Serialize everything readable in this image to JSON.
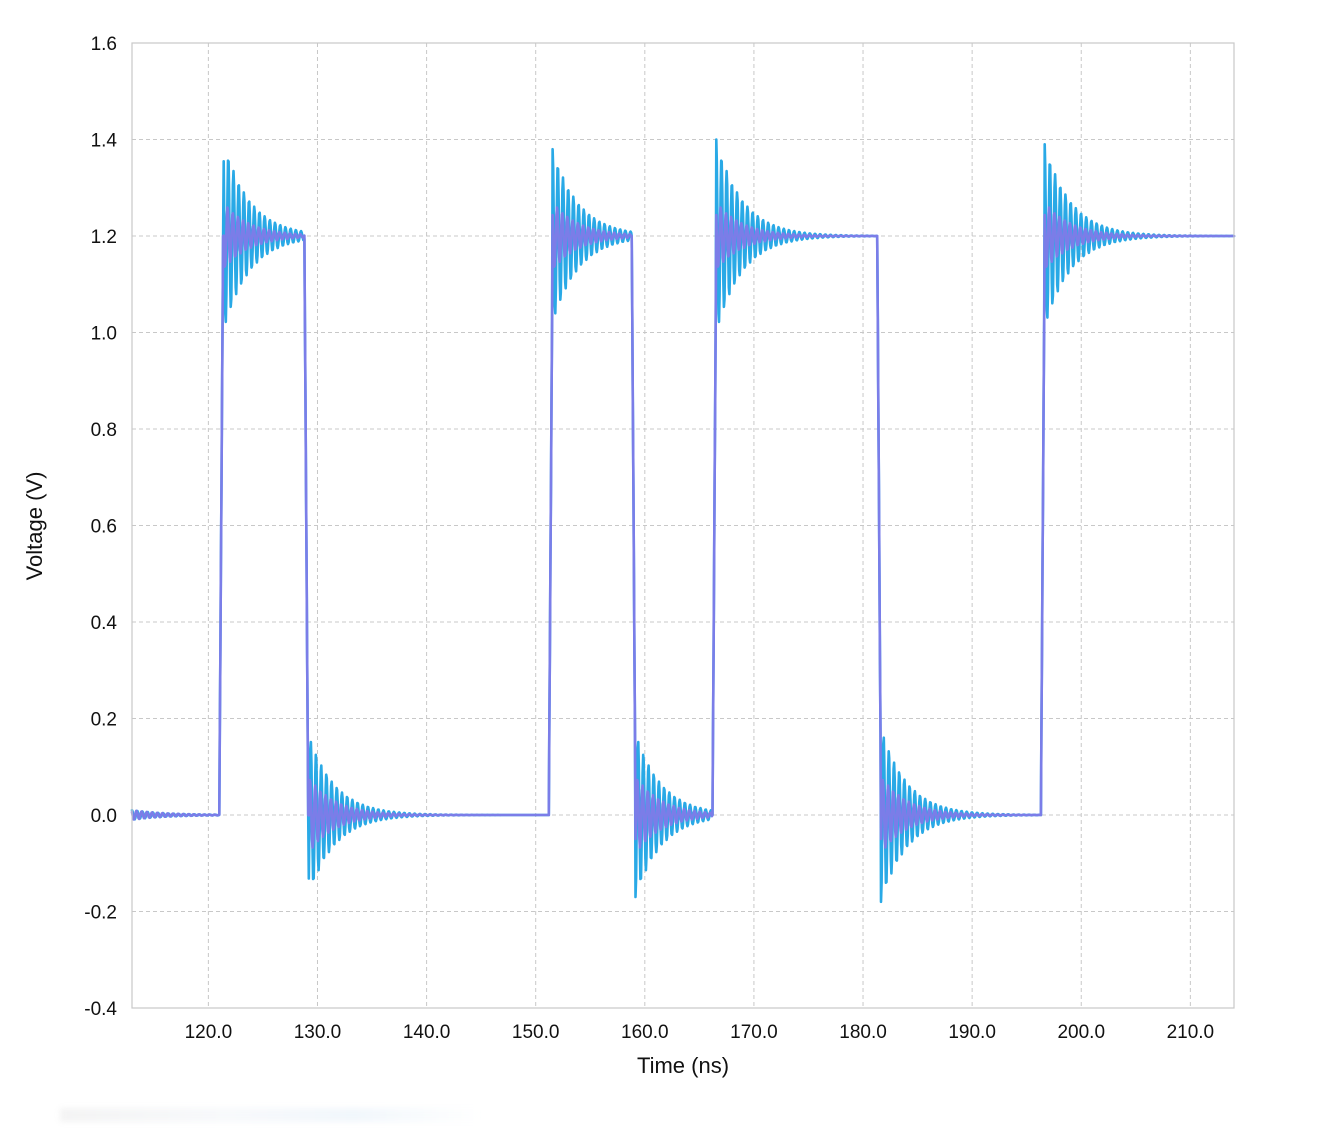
{
  "chart_data": {
    "type": "line",
    "title": "",
    "xlabel": "Time (ns)",
    "ylabel": "Voltage (V)",
    "xlim": [
      113,
      214
    ],
    "ylim": [
      -0.4,
      1.6
    ],
    "grid": true,
    "legend": "none",
    "x_ticks": [
      120,
      130,
      140,
      150,
      160,
      170,
      180,
      190,
      200,
      210
    ],
    "x_tick_labels": [
      "120.0",
      "130.0",
      "140.0",
      "150.0",
      "160.0",
      "170.0",
      "180.0",
      "190.0",
      "200.0",
      "210.0"
    ],
    "y_ticks": [
      -0.4,
      -0.2,
      0.0,
      0.2,
      0.4,
      0.6,
      0.8,
      1.0,
      1.2,
      1.4,
      1.6
    ],
    "y_tick_labels": [
      "-0.4",
      "-0.2",
      "0.0",
      "0.2",
      "0.4",
      "0.6",
      "0.8",
      "1.0",
      "1.2",
      "1.4",
      "1.6"
    ],
    "series": [
      {
        "color": "#29a9e6",
        "low_level": 0.0,
        "high_level": 1.2,
        "edges": [
          {
            "t": 121.0,
            "dir": "rise",
            "peak": 1.4
          },
          {
            "t": 128.8,
            "dir": "fall",
            "peak": -0.17
          },
          {
            "t": 151.2,
            "dir": "rise",
            "peak": 1.38
          },
          {
            "t": 158.8,
            "dir": "fall",
            "peak": -0.17
          },
          {
            "t": 166.2,
            "dir": "rise",
            "peak": 1.4
          },
          {
            "t": 181.3,
            "dir": "fall",
            "peak": -0.18
          },
          {
            "t": 196.3,
            "dir": "rise",
            "peak": 1.39
          }
        ]
      },
      {
        "color": "#7b7de8",
        "low_level": 0.0,
        "high_level": 1.2,
        "edges": [
          {
            "t": 121.0,
            "dir": "rise",
            "peak": 1.27
          },
          {
            "t": 128.8,
            "dir": "fall",
            "peak": -0.08
          },
          {
            "t": 151.2,
            "dir": "rise",
            "peak": 1.27
          },
          {
            "t": 158.8,
            "dir": "fall",
            "peak": -0.08
          },
          {
            "t": 166.2,
            "dir": "rise",
            "peak": 1.27
          },
          {
            "t": 181.3,
            "dir": "fall",
            "peak": -0.08
          },
          {
            "t": 196.3,
            "dir": "rise",
            "peak": 1.27
          }
        ]
      }
    ]
  }
}
